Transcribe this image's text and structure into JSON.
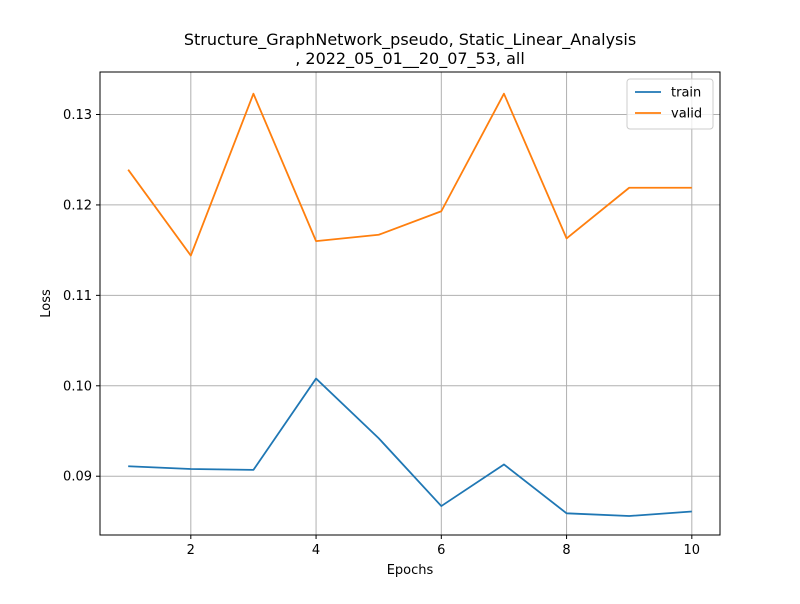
{
  "chart_data": {
    "type": "line",
    "title_lines": [
      "Structure_GraphNetwork_pseudo, Static_Linear_Analysis",
      ", 2022_05_01__20_07_53, all"
    ],
    "xlabel": "Epochs",
    "ylabel": "Loss",
    "xlim": [
      0.55,
      10.45
    ],
    "ylim": [
      0.0835,
      0.1347
    ],
    "xticks": [
      2,
      4,
      6,
      8,
      10
    ],
    "yticks": [
      0.09,
      0.1,
      0.11,
      0.12,
      0.13
    ],
    "ytick_labels": [
      "0.09",
      "0.10",
      "0.11",
      "0.12",
      "0.13"
    ],
    "grid": true,
    "legend_position": "top-right",
    "x": [
      1,
      2,
      3,
      4,
      5,
      6,
      7,
      8,
      9,
      10
    ],
    "series": [
      {
        "name": "train",
        "color": "#1f77b4",
        "values": [
          0.0911,
          0.0908,
          0.0907,
          0.1008,
          0.0942,
          0.0867,
          0.0913,
          0.0859,
          0.0856,
          0.0861
        ]
      },
      {
        "name": "valid",
        "color": "#ff7f0e",
        "values": [
          0.1239,
          0.1144,
          0.1323,
          0.116,
          0.1167,
          0.1193,
          0.1323,
          0.1163,
          0.1219,
          0.1219
        ]
      }
    ]
  }
}
